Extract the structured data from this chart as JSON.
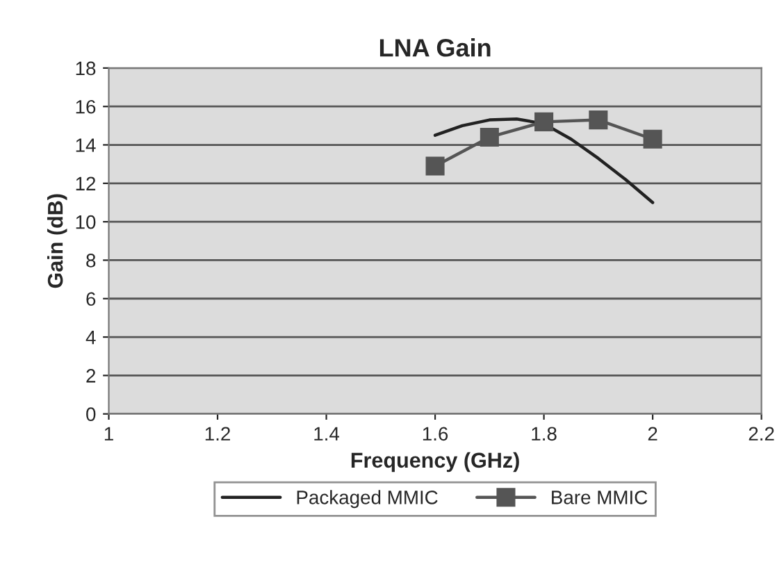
{
  "chart_data": {
    "type": "line",
    "title": "LNA Gain",
    "xlabel": "Frequency (GHz)",
    "ylabel": "Gain (dB)",
    "xlim": [
      1,
      2.2
    ],
    "xticks": [
      {
        "value": 1,
        "label": "1"
      },
      1.2,
      1.4,
      1.6,
      1.8,
      {
        "value": 2,
        "label": "2"
      },
      2.2
    ],
    "ylim": [
      0,
      18
    ],
    "yticks": [
      0,
      2,
      4,
      6,
      8,
      10,
      12,
      14,
      16,
      18
    ],
    "grid": "y",
    "legend": "bottom",
    "series": [
      {
        "name": "Packaged MMIC",
        "color": "#222222",
        "marker": "none",
        "x": [
          1.6,
          1.65,
          1.7,
          1.75,
          1.8,
          1.85,
          1.9,
          1.95,
          2.0
        ],
        "values": [
          14.5,
          15.0,
          15.3,
          15.35,
          15.1,
          14.3,
          13.3,
          12.2,
          11.0
        ]
      },
      {
        "name": "Bare MMIC",
        "color": "#555555",
        "marker": "square",
        "x": [
          1.6,
          1.7,
          1.8,
          1.9,
          2.0
        ],
        "values": [
          12.9,
          14.4,
          15.2,
          15.3,
          14.3
        ]
      }
    ]
  }
}
